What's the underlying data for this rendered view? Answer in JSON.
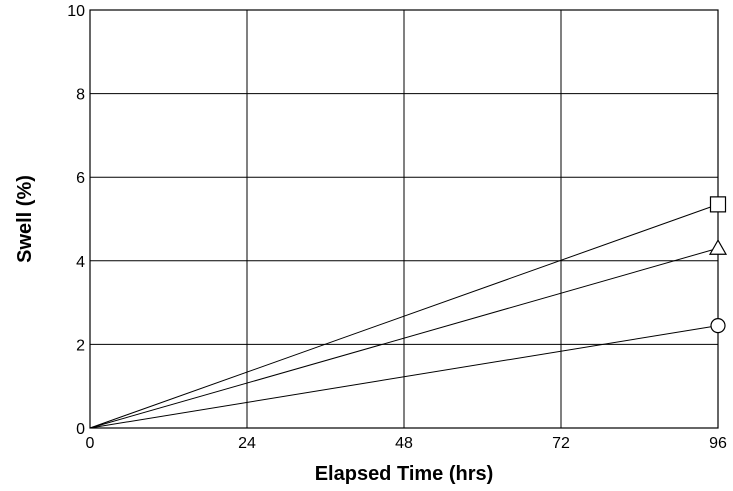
{
  "chart_data": {
    "type": "line",
    "title": "",
    "xlabel": "Elapsed Time (hrs)",
    "ylabel": "Swell (%)",
    "xlim": [
      0,
      96
    ],
    "ylim": [
      0,
      10
    ],
    "xticks": [
      0,
      24,
      48,
      72,
      96
    ],
    "yticks": [
      0,
      2,
      4,
      6,
      8,
      10
    ],
    "grid": true,
    "series": [
      {
        "marker": "square",
        "x": [
          0,
          96
        ],
        "y": [
          0,
          5.35
        ]
      },
      {
        "marker": "triangle",
        "x": [
          0,
          96
        ],
        "y": [
          0,
          4.3
        ]
      },
      {
        "marker": "circle",
        "x": [
          0,
          96
        ],
        "y": [
          0,
          2.45
        ]
      }
    ]
  }
}
